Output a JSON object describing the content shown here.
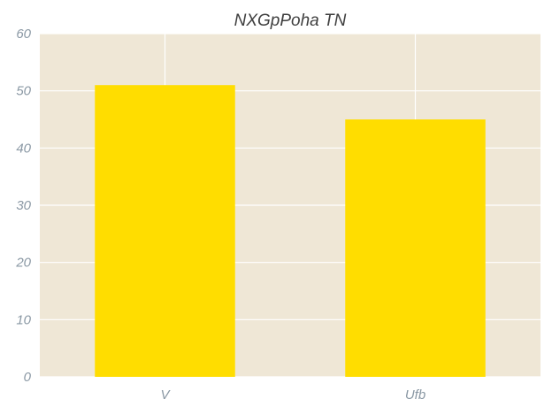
{
  "chart_data": {
    "type": "bar",
    "title": "NXGpPoha TN",
    "xlabel": "",
    "ylabel": "",
    "categories": [
      "V",
      "Ufb"
    ],
    "series": [
      {
        "values": [
          51,
          45
        ]
      }
    ],
    "ylim": [
      0,
      60
    ],
    "yticks": [
      0,
      10,
      20,
      30,
      40,
      50,
      60
    ],
    "grid": true,
    "legend": "none",
    "colors": {
      "bar": "#FFDD00",
      "plot_background": "#EFE7D6",
      "grid": "#FFFFFF",
      "tick_text": "#8A98A4",
      "title_text": "#3F3F3F"
    }
  }
}
